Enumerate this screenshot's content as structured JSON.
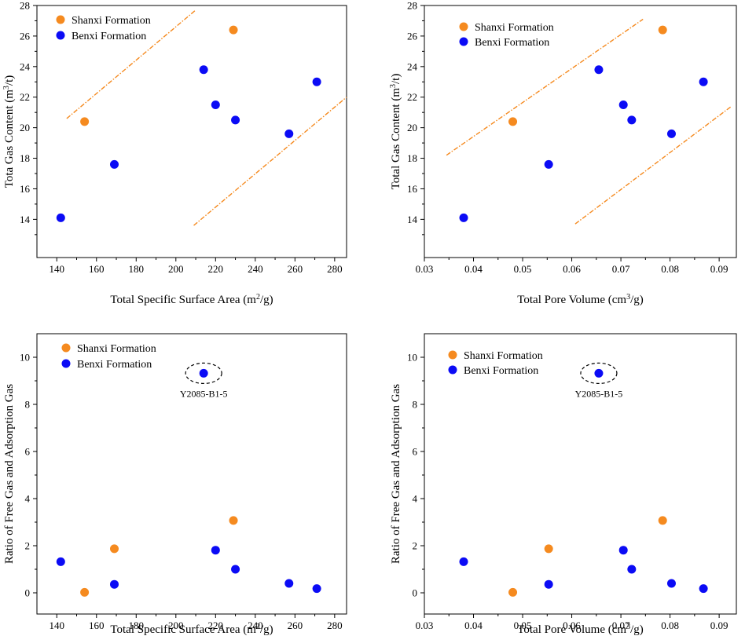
{
  "colors": {
    "shanxi": "#F58A1F",
    "benxi": "#0B0BF5",
    "trend": "#F58A1F",
    "ellipse": "#000000",
    "background": "#ffffff"
  },
  "chart_data": [
    {
      "type": "scatter",
      "title": "",
      "xlabel": "Total Specific Surface Area",
      "xunit": "(m²/g)",
      "ylabel": "Tota Gas Content",
      "yunit": "(m³/t)",
      "xlim": [
        130,
        286
      ],
      "ylim": [
        11.5,
        28
      ],
      "xticks": [
        140,
        160,
        180,
        200,
        220,
        240,
        260,
        280
      ],
      "yticks": [
        14,
        16,
        18,
        20,
        22,
        24,
        26,
        28
      ],
      "xtick_labels": [
        "140",
        "160",
        "180",
        "200",
        "220",
        "240",
        "260",
        "280"
      ],
      "ytick_labels": [
        "14",
        "16",
        "18",
        "20",
        "22",
        "24",
        "26",
        "28"
      ],
      "legend": [
        "Shanxi Formation",
        "Benxi Formation"
      ],
      "legend_position": "top-left",
      "series": [
        {
          "name": "Shanxi Formation",
          "x": [
            154,
            229
          ],
          "y": [
            20.4,
            26.4
          ]
        },
        {
          "name": "Benxi Formation",
          "x": [
            142,
            169,
            214,
            220,
            230,
            257,
            271
          ],
          "y": [
            14.1,
            17.6,
            23.8,
            21.5,
            20.5,
            19.6,
            23.0
          ]
        }
      ],
      "trend_lines": [
        {
          "x": [
            145,
            210
          ],
          "y": [
            20.6,
            27.7
          ]
        },
        {
          "x": [
            209,
            286
          ],
          "y": [
            13.6,
            22.0
          ]
        }
      ]
    },
    {
      "type": "scatter",
      "title": "",
      "xlabel": "Total Pore Volume",
      "xunit": "(cm³/g)",
      "ylabel": "Total Gas Content",
      "yunit": "(m³/t)",
      "xlim": [
        0.03,
        0.0935
      ],
      "ylim": [
        11.5,
        28
      ],
      "xticks": [
        0.03,
        0.04,
        0.05,
        0.06,
        0.07,
        0.08,
        0.09
      ],
      "yticks": [
        14,
        16,
        18,
        20,
        22,
        24,
        26,
        28
      ],
      "xtick_labels": [
        "0.03",
        "0.04",
        "0.05",
        "0.06",
        "0.07",
        "0.08",
        "0.09"
      ],
      "ytick_labels": [
        "14",
        "16",
        "18",
        "20",
        "22",
        "24",
        "26",
        "28"
      ],
      "legend": [
        "Shanxi Formation",
        "Benxi Formation"
      ],
      "legend_position": "top-left",
      "series": [
        {
          "name": "Shanxi Formation",
          "x": [
            0.048,
            0.0785
          ],
          "y": [
            20.4,
            26.4
          ]
        },
        {
          "name": "Benxi Formation",
          "x": [
            0.038,
            0.0553,
            0.0655,
            0.0705,
            0.0722,
            0.0803,
            0.0868
          ],
          "y": [
            14.1,
            17.6,
            23.8,
            21.5,
            20.5,
            19.6,
            23.0
          ]
        }
      ],
      "trend_lines": [
        {
          "x": [
            0.0345,
            0.0745
          ],
          "y": [
            18.2,
            27.1
          ]
        },
        {
          "x": [
            0.0607,
            0.0925
          ],
          "y": [
            13.7,
            21.4
          ]
        }
      ]
    },
    {
      "type": "scatter",
      "title": "",
      "xlabel": "Total Specific Surface Area",
      "xunit": "(m²/g)",
      "ylabel": "Ratio of Free Gas and Adsorption Gas",
      "yunit": "",
      "xlim": [
        130,
        286
      ],
      "ylim": [
        -0.9,
        11
      ],
      "xticks": [
        140,
        160,
        180,
        200,
        220,
        240,
        260,
        280
      ],
      "yticks": [
        0,
        2,
        4,
        6,
        8,
        10
      ],
      "xtick_labels": [
        "140",
        "160",
        "180",
        "200",
        "220",
        "240",
        "260",
        "280"
      ],
      "ytick_labels": [
        "0",
        "2",
        "4",
        "6",
        "8",
        "10"
      ],
      "legend": [
        "Shanxi Formation",
        "Benxi Formation"
      ],
      "legend_position": "top-left",
      "series": [
        {
          "name": "Shanxi Formation",
          "x": [
            154,
            169,
            229
          ],
          "y": [
            0.02,
            1.87,
            3.07
          ]
        },
        {
          "name": "Benxi Formation",
          "x": [
            142,
            169,
            214,
            220,
            230,
            257,
            271
          ],
          "y": [
            1.32,
            0.36,
            9.32,
            1.81,
            1.0,
            0.4,
            0.18
          ]
        }
      ],
      "annotation": {
        "text": "Y2085-B1-5",
        "x": 214,
        "y": 9.32
      }
    },
    {
      "type": "scatter",
      "title": "",
      "xlabel": "Total Pore Volume",
      "xunit": "(cm³/g)",
      "ylabel": "Ratio of Free Gas and Adsorption Gas",
      "yunit": "",
      "xlim": [
        0.03,
        0.0935
      ],
      "ylim": [
        -0.9,
        11
      ],
      "xticks": [
        0.03,
        0.04,
        0.05,
        0.06,
        0.07,
        0.08,
        0.09
      ],
      "yticks": [
        0,
        2,
        4,
        6,
        8,
        10
      ],
      "xtick_labels": [
        "0.03",
        "0.04",
        "0.05",
        "0.06",
        "0.07",
        "0.08",
        "0.09"
      ],
      "ytick_labels": [
        "0",
        "2",
        "4",
        "6",
        "8",
        "10"
      ],
      "legend": [
        "Shanxi Formation",
        "Benxi Formation"
      ],
      "legend_position": "top-left",
      "series": [
        {
          "name": "Shanxi Formation",
          "x": [
            0.048,
            0.0553,
            0.0785
          ],
          "y": [
            0.02,
            1.87,
            3.07
          ]
        },
        {
          "name": "Benxi Formation",
          "x": [
            0.038,
            0.0553,
            0.0655,
            0.0705,
            0.0722,
            0.0803,
            0.0868
          ],
          "y": [
            1.32,
            0.36,
            9.32,
            1.81,
            1.0,
            0.4,
            0.18
          ]
        }
      ],
      "annotation": {
        "text": "Y2085-B1-5",
        "x": 0.0655,
        "y": 9.32
      }
    }
  ]
}
